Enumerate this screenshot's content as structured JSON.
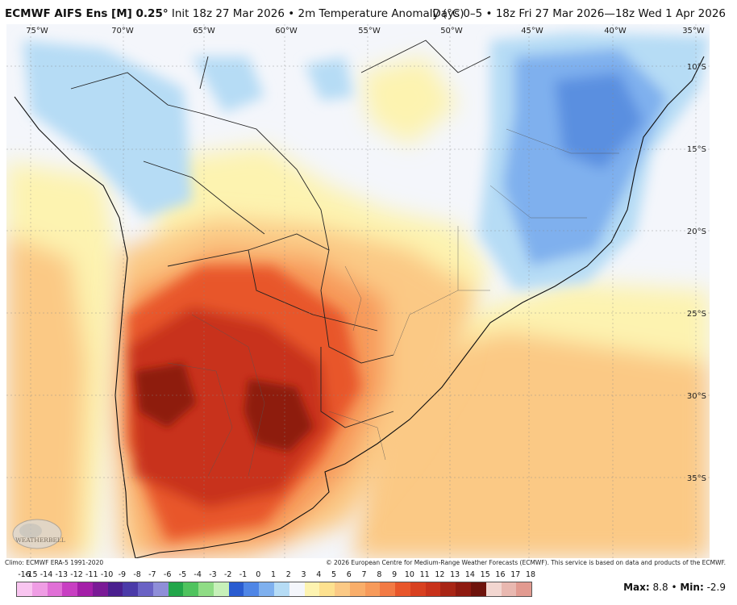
{
  "header": {
    "model": "ECMWF AIFS Ens [M] 0.25°",
    "init": "Init 18z 27 Mar 2026",
    "separator": "•",
    "field": "2m Temperature Anomaly (°C)",
    "valid": "Days 0–5 • 18z Fri 27 Mar 2026—18z Wed 1 Apr 2026"
  },
  "map": {
    "lon_labels": [
      "75°W",
      "70°W",
      "65°W",
      "60°W",
      "55°W",
      "50°W",
      "45°W",
      "40°W",
      "35°W"
    ],
    "lat_labels": [
      "10°S",
      "15°S",
      "20°S",
      "25°S",
      "30°S",
      "35°S"
    ],
    "logo_text": "WEATHERBELL",
    "colors": {
      "ocean_neutral": "#f4f6fb",
      "cold_light": "#b6dcf5",
      "cold_mid": "#7fb0ee",
      "cold_strong": "#5a8fe0",
      "warm_pale": "#fdf3b0",
      "warm_light": "#fbc985",
      "warm_mid": "#f79a5a",
      "warm_strong": "#e8562a",
      "hot": "#c8321a",
      "very_hot": "#8e1a10"
    }
  },
  "credits": {
    "left": "Climo: ECMWF ERA-5 1991-2020",
    "right": "© 2026 European Centre for Medium-Range Weather Forecasts (ECMWF). This service is based on data and products of the ECMWF."
  },
  "legend": {
    "labels": [
      "-16",
      "-15",
      "-14",
      "-13",
      "-12",
      "-11",
      "-10",
      "-9",
      "-8",
      "-7",
      "-6",
      "-5",
      "-4",
      "-3",
      "-2",
      "-1",
      "0",
      "1",
      "2",
      "3",
      "4",
      "5",
      "6",
      "7",
      "8",
      "9",
      "10",
      "11",
      "12",
      "13",
      "14",
      "15",
      "16",
      "17",
      "18"
    ],
    "colors": [
      "#f9c5f0",
      "#ef9de4",
      "#e070d6",
      "#c83fc2",
      "#a41fa8",
      "#7a1a96",
      "#4a1f8e",
      "#4b3aa8",
      "#6a62c4",
      "#8f8ed8",
      "#22a64a",
      "#4fc35e",
      "#8fdc85",
      "#c7f0b9",
      "#2a5cd0",
      "#4f86e6",
      "#7fb0ee",
      "#b6dcf5",
      "#f4f6fb",
      "#fdf3b0",
      "#fde18f",
      "#fbc985",
      "#f9ae6a",
      "#f79a5a",
      "#f27a44",
      "#e8562a",
      "#d8401f",
      "#c8321a",
      "#a82515",
      "#8e1a10",
      "#6e130c",
      "#f2d6d0",
      "#e9b8b0",
      "#e29a90"
    ],
    "max_label": "Max:",
    "max_value": "8.8",
    "dot": "•",
    "min_label": "Min:",
    "min_value": "-2.9"
  }
}
